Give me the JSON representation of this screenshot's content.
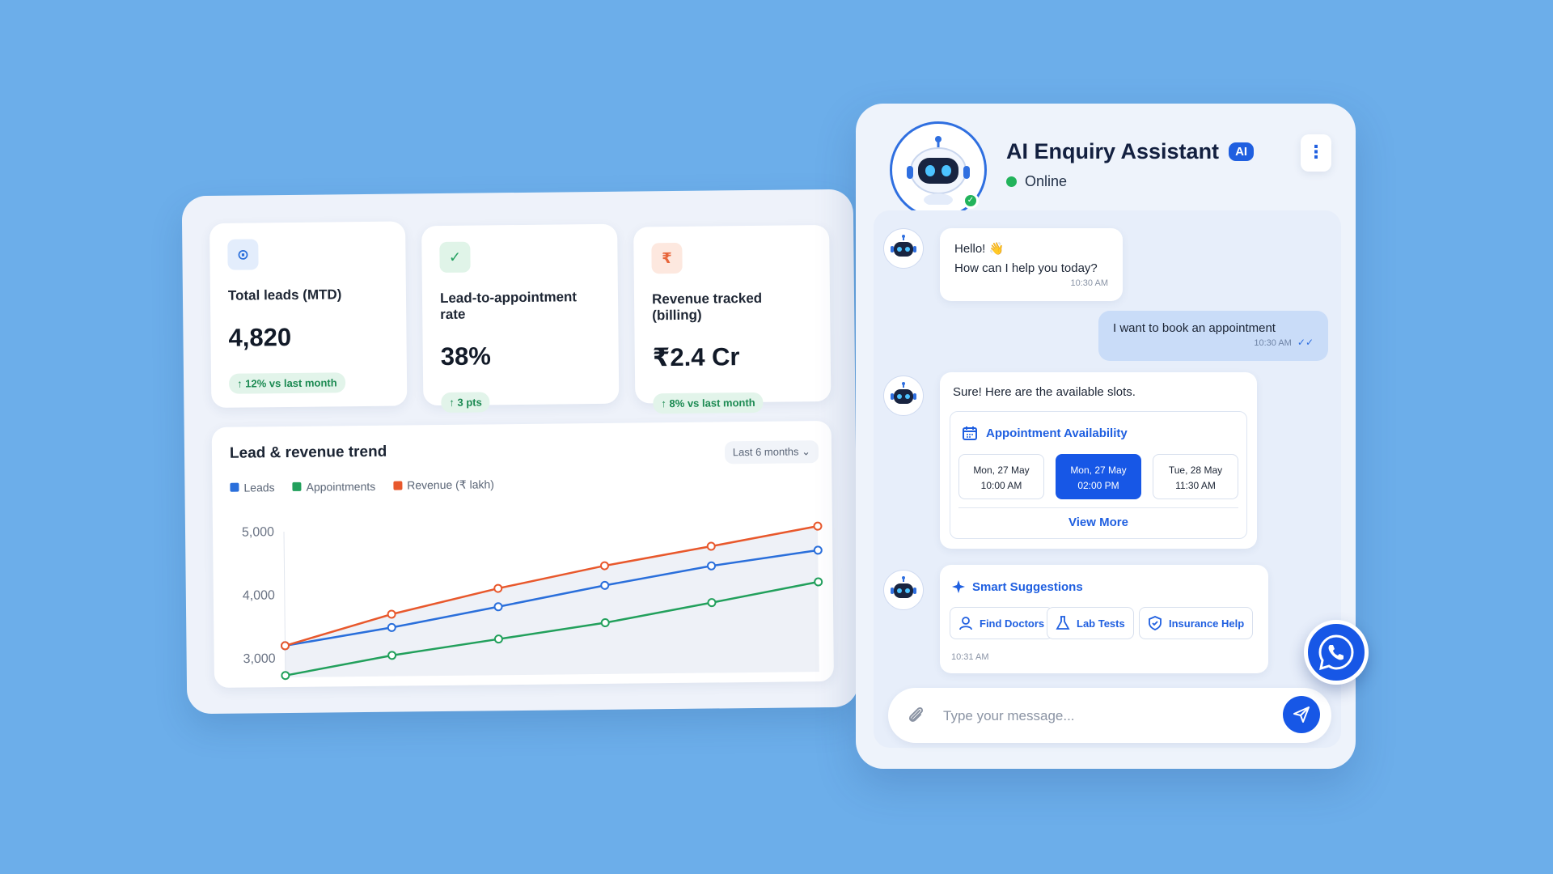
{
  "kpis": [
    {
      "icon": "target-icon",
      "icon_glyph": "⊙",
      "label": "Total leads (MTD)",
      "value": "4,820",
      "delta": "↑ 12% vs last month"
    },
    {
      "icon": "check-icon",
      "icon_glyph": "✓",
      "label": "Lead-to-appointment rate",
      "value": "38%",
      "delta": "↑ 3 pts"
    },
    {
      "icon": "rupee-icon",
      "icon_glyph": "₹",
      "label": "Revenue tracked (billing)",
      "value": "₹2.4 Cr",
      "delta": "↑ 8% vs last month"
    }
  ],
  "trend": {
    "title": "Lead & revenue trend",
    "range": "Last 6 months"
  },
  "chart_data": {
    "type": "line",
    "title": "Lead & revenue trend",
    "x": [
      1,
      2,
      3,
      4,
      5,
      6
    ],
    "ylim": [
      2700,
      5000
    ],
    "y_ticks": [
      "5,000",
      "4,000",
      "3,000"
    ],
    "y_tick_values": [
      5000,
      4000,
      3000
    ],
    "grid": false,
    "legend_placement": "top-left",
    "series": [
      {
        "name": "Leads",
        "color": "#2a6fdb",
        "values": [
          3200,
          3470,
          3780,
          4100,
          4390,
          4620
        ]
      },
      {
        "name": "Appointments",
        "color": "#22a05c",
        "values": [
          2730,
          3030,
          3270,
          3510,
          3810,
          4120
        ]
      },
      {
        "name": "Revenue (₹ lakh)",
        "color": "#e8582c",
        "values": [
          3200,
          3680,
          4070,
          4410,
          4700,
          5000
        ]
      }
    ]
  },
  "chat": {
    "title": "AI Enquiry Assistant",
    "badge": "AI",
    "status": "Online",
    "messages": {
      "greeting_line1": "Hello! 👋",
      "greeting_line2": "How can I help you today?",
      "greeting_time": "10:30 AM",
      "user_text": "I want to book an appointment",
      "user_time": "10:30 AM",
      "slots_intro": "Sure! Here are the available slots.",
      "availability_title": "Appointment Availability",
      "slots": [
        {
          "day": "Mon, 27 May",
          "time": "10:00 AM",
          "active": false
        },
        {
          "day": "Mon, 27 May",
          "time": "02:00 PM",
          "active": true
        },
        {
          "day": "Tue, 28 May",
          "time": "11:30 AM",
          "active": false
        }
      ],
      "view_more": "View More",
      "suggestions_title": "Smart Suggestions",
      "suggestions": [
        "Find Doctors",
        "Lab Tests",
        "Insurance Help"
      ],
      "suggestions_time": "10:31 AM"
    },
    "input_placeholder": "Type your message..."
  },
  "colors": {
    "background": "#6caeea",
    "accent": "#1757e6",
    "online": "#22b35b"
  }
}
